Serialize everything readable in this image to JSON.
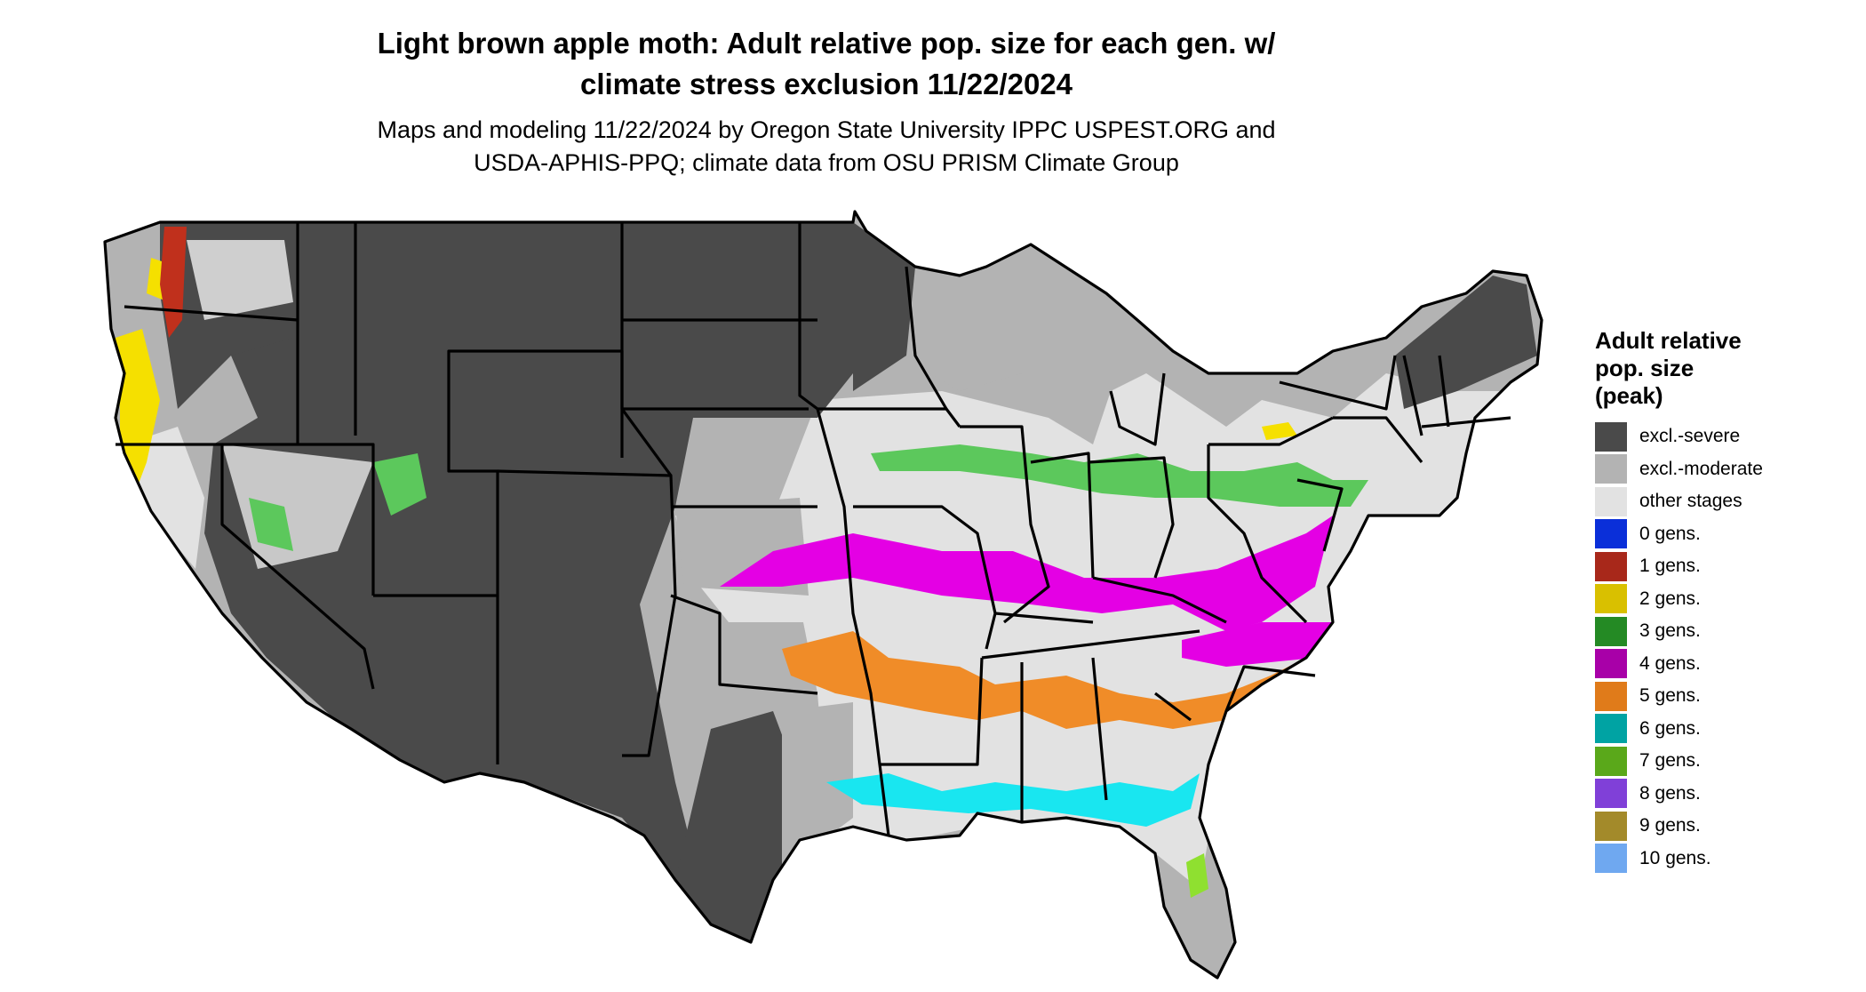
{
  "title_line1": "Light brown apple moth: Adult relative pop. size for each gen. w/",
  "title_line2": "climate stress exclusion 11/22/2024",
  "subtitle_line1": "Maps and modeling 11/22/2024 by Oregon State University IPPC USPEST.ORG and",
  "subtitle_line2": "USDA-APHIS-PPQ; climate data from OSU PRISM Climate Group",
  "legend": {
    "title_line1": "Adult relative",
    "title_line2": "pop. size",
    "title_line3": "(peak)",
    "items": [
      {
        "label": "excl.-severe",
        "color": "#4a4a4a"
      },
      {
        "label": "excl.-moderate",
        "color": "#b3b3b3"
      },
      {
        "label": "other stages",
        "color": "#e2e2e2"
      },
      {
        "label": "0 gens.",
        "color": "#0a2fd9"
      },
      {
        "label": "1 gens.",
        "color": "#a8281a"
      },
      {
        "label": "2 gens.",
        "color": "#d9c000"
      },
      {
        "label": "3 gens.",
        "color": "#248a24"
      },
      {
        "label": "4 gens.",
        "color": "#a800a8"
      },
      {
        "label": "5 gens.",
        "color": "#e07b1a"
      },
      {
        "label": "6 gens.",
        "color": "#00a3a3"
      },
      {
        "label": "7 gens.",
        "color": "#5aa81a"
      },
      {
        "label": "8 gens.",
        "color": "#8040d8"
      },
      {
        "label": "9 gens.",
        "color": "#a38a2a"
      },
      {
        "label": "10 gens.",
        "color": "#6fa8f0"
      }
    ]
  },
  "map_colors": {
    "band_4gens": "#e400e4",
    "band_5gens": "#f08c28",
    "band_6gens": "#19e6f0",
    "band_3gens": "#5cc85c",
    "band_2gens": "#f5e000",
    "band_1gens": "#c0301c",
    "band_7gens": "#8fe030"
  }
}
